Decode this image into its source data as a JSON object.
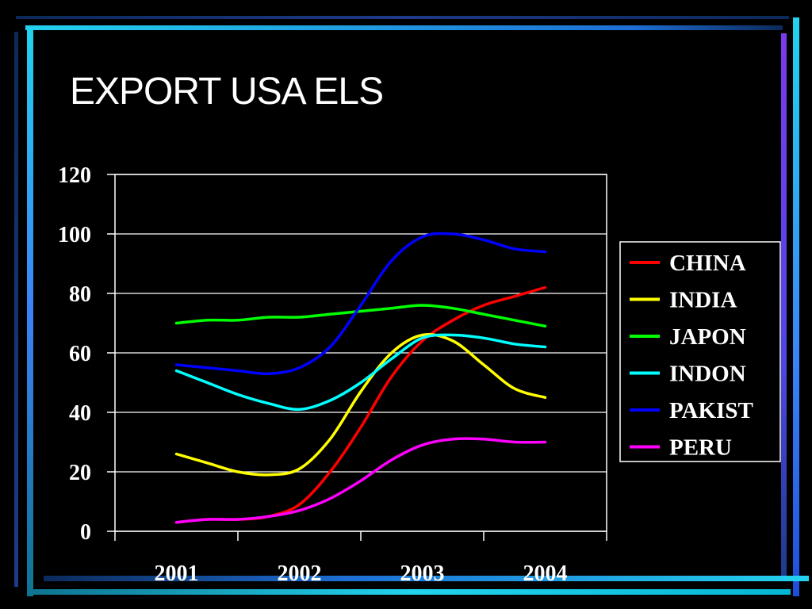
{
  "slide": {
    "title": "EXPORT USA ELS",
    "frame_colors": {
      "cyan": "#22d3ee",
      "blue": "#3b82f6",
      "purple": "#7c3aed",
      "navy": "#1e3a8a"
    }
  },
  "chart_data": {
    "type": "line",
    "title": "",
    "xlabel": "",
    "ylabel": "",
    "categories": [
      "2001",
      "2002",
      "2003",
      "2004"
    ],
    "ylim": [
      0,
      120
    ],
    "yticks": [
      0,
      20,
      40,
      60,
      80,
      100,
      120
    ],
    "grid": true,
    "legend_position": "right",
    "x": [
      2001.0,
      2001.25,
      2001.5,
      2001.75,
      2002.0,
      2002.25,
      2002.5,
      2002.75,
      2003.0,
      2003.25,
      2003.5,
      2003.75,
      2004.0
    ],
    "series": [
      {
        "name": "CHINA",
        "color": "#ff0000",
        "values": [
          3,
          4,
          4,
          5,
          9,
          20,
          35,
          52,
          64,
          71,
          76,
          79,
          82
        ]
      },
      {
        "name": "INDIA",
        "color": "#ffff00",
        "values": [
          26,
          23,
          20,
          19,
          21,
          31,
          47,
          60,
          66,
          64,
          56,
          48,
          45
        ]
      },
      {
        "name": "JAPON",
        "color": "#00ff00",
        "values": [
          70,
          71,
          71,
          72,
          72,
          73,
          74,
          75,
          76,
          75,
          73,
          71,
          69
        ]
      },
      {
        "name": "INDON",
        "color": "#00ffff",
        "values": [
          54,
          50,
          46,
          43,
          41,
          44,
          50,
          58,
          65,
          66,
          65,
          63,
          62
        ]
      },
      {
        "name": "PAKIST",
        "color": "#0000ff",
        "values": [
          56,
          55,
          54,
          53,
          55,
          62,
          76,
          91,
          99,
          100,
          98,
          95,
          94
        ]
      },
      {
        "name": "PERU",
        "color": "#ff00ff",
        "values": [
          3,
          4,
          4,
          5,
          7,
          11,
          17,
          24,
          29,
          31,
          31,
          30,
          30
        ]
      }
    ]
  }
}
